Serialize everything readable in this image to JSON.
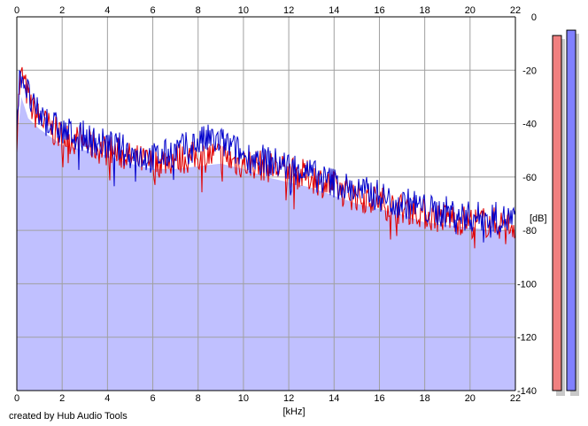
{
  "chart_data": {
    "type": "area",
    "x_unit_label": "[kHz]",
    "y_unit_label": "[dB]",
    "xlim": [
      0,
      22
    ],
    "ylim": [
      -140,
      0
    ],
    "x_ticks": [
      0,
      2,
      4,
      6,
      8,
      10,
      12,
      14,
      16,
      18,
      20,
      22
    ],
    "y_ticks": [
      0,
      -20,
      -40,
      -60,
      -80,
      -100,
      -120,
      -140
    ],
    "grid": true,
    "series": [
      {
        "color": "#e00000",
        "x": [
          0,
          0.1,
          0.2,
          0.3,
          0.5,
          0.7,
          1,
          1.5,
          2,
          2.5,
          3,
          3.5,
          4,
          4.5,
          5,
          5.5,
          6,
          6.5,
          7,
          7.5,
          8,
          8.5,
          9,
          9.5,
          10,
          10.5,
          11,
          11.5,
          12,
          12.5,
          13,
          13.5,
          14,
          14.5,
          15,
          15.5,
          16,
          16.5,
          17,
          17.5,
          18,
          18.5,
          19,
          19.5,
          20,
          20.5,
          21,
          21.5,
          22
        ],
        "y": [
          -45,
          -28,
          -22,
          -24,
          -30,
          -35,
          -38,
          -42,
          -45,
          -46,
          -47,
          -49,
          -50,
          -51,
          -53,
          -54,
          -55,
          -54,
          -53,
          -53,
          -52,
          -52,
          -52,
          -54,
          -55,
          -55,
          -56,
          -57,
          -58,
          -59,
          -60,
          -62,
          -64,
          -66,
          -67,
          -68,
          -69,
          -71,
          -72,
          -72,
          -74,
          -75,
          -75,
          -76,
          -77,
          -77,
          -77,
          -78,
          -78
        ]
      },
      {
        "color": "#0000cc",
        "x": [
          0,
          0.1,
          0.2,
          0.3,
          0.5,
          0.7,
          1,
          1.5,
          2,
          2.5,
          3,
          3.5,
          4,
          4.5,
          5,
          5.5,
          6,
          6.5,
          7,
          7.5,
          8,
          8.5,
          9,
          9.5,
          10,
          10.5,
          11,
          11.5,
          12,
          12.5,
          13,
          13.5,
          14,
          14.5,
          15,
          15.5,
          16,
          16.5,
          17,
          17.5,
          18,
          18.5,
          19,
          19.5,
          20,
          20.5,
          21,
          21.5,
          22
        ],
        "y": [
          -42,
          -26,
          -21,
          -23,
          -29,
          -34,
          -37,
          -40,
          -43,
          -44,
          -45,
          -47,
          -48,
          -49,
          -51,
          -52,
          -53,
          -52,
          -50,
          -49,
          -47,
          -46,
          -47,
          -49,
          -52,
          -53,
          -54,
          -55,
          -56,
          -57,
          -59,
          -61,
          -62,
          -64,
          -65,
          -66,
          -67,
          -69,
          -70,
          -70,
          -72,
          -73,
          -73,
          -74,
          -75,
          -75,
          -75,
          -76,
          -76
        ]
      }
    ],
    "filled_floor": {
      "color": "#c0c0ff",
      "x": [
        0,
        0.2,
        0.5,
        1,
        2,
        3,
        4,
        5,
        6,
        7,
        8,
        9,
        10,
        11,
        12,
        13,
        14,
        15,
        16,
        17,
        18,
        19,
        20,
        21,
        22
      ],
      "y": [
        -48,
        -30,
        -38,
        -42,
        -48,
        -50,
        -52,
        -55,
        -57,
        -57,
        -56,
        -55,
        -57,
        -60,
        -62,
        -64,
        -67,
        -70,
        -72,
        -74,
        -77,
        -78,
        -79,
        -80,
        -80
      ]
    },
    "level_meters": [
      {
        "color": "#f08080",
        "value": -7
      },
      {
        "color": "#8080ff",
        "value": -5
      }
    ]
  },
  "credit": "created by Hub Audio Tools"
}
